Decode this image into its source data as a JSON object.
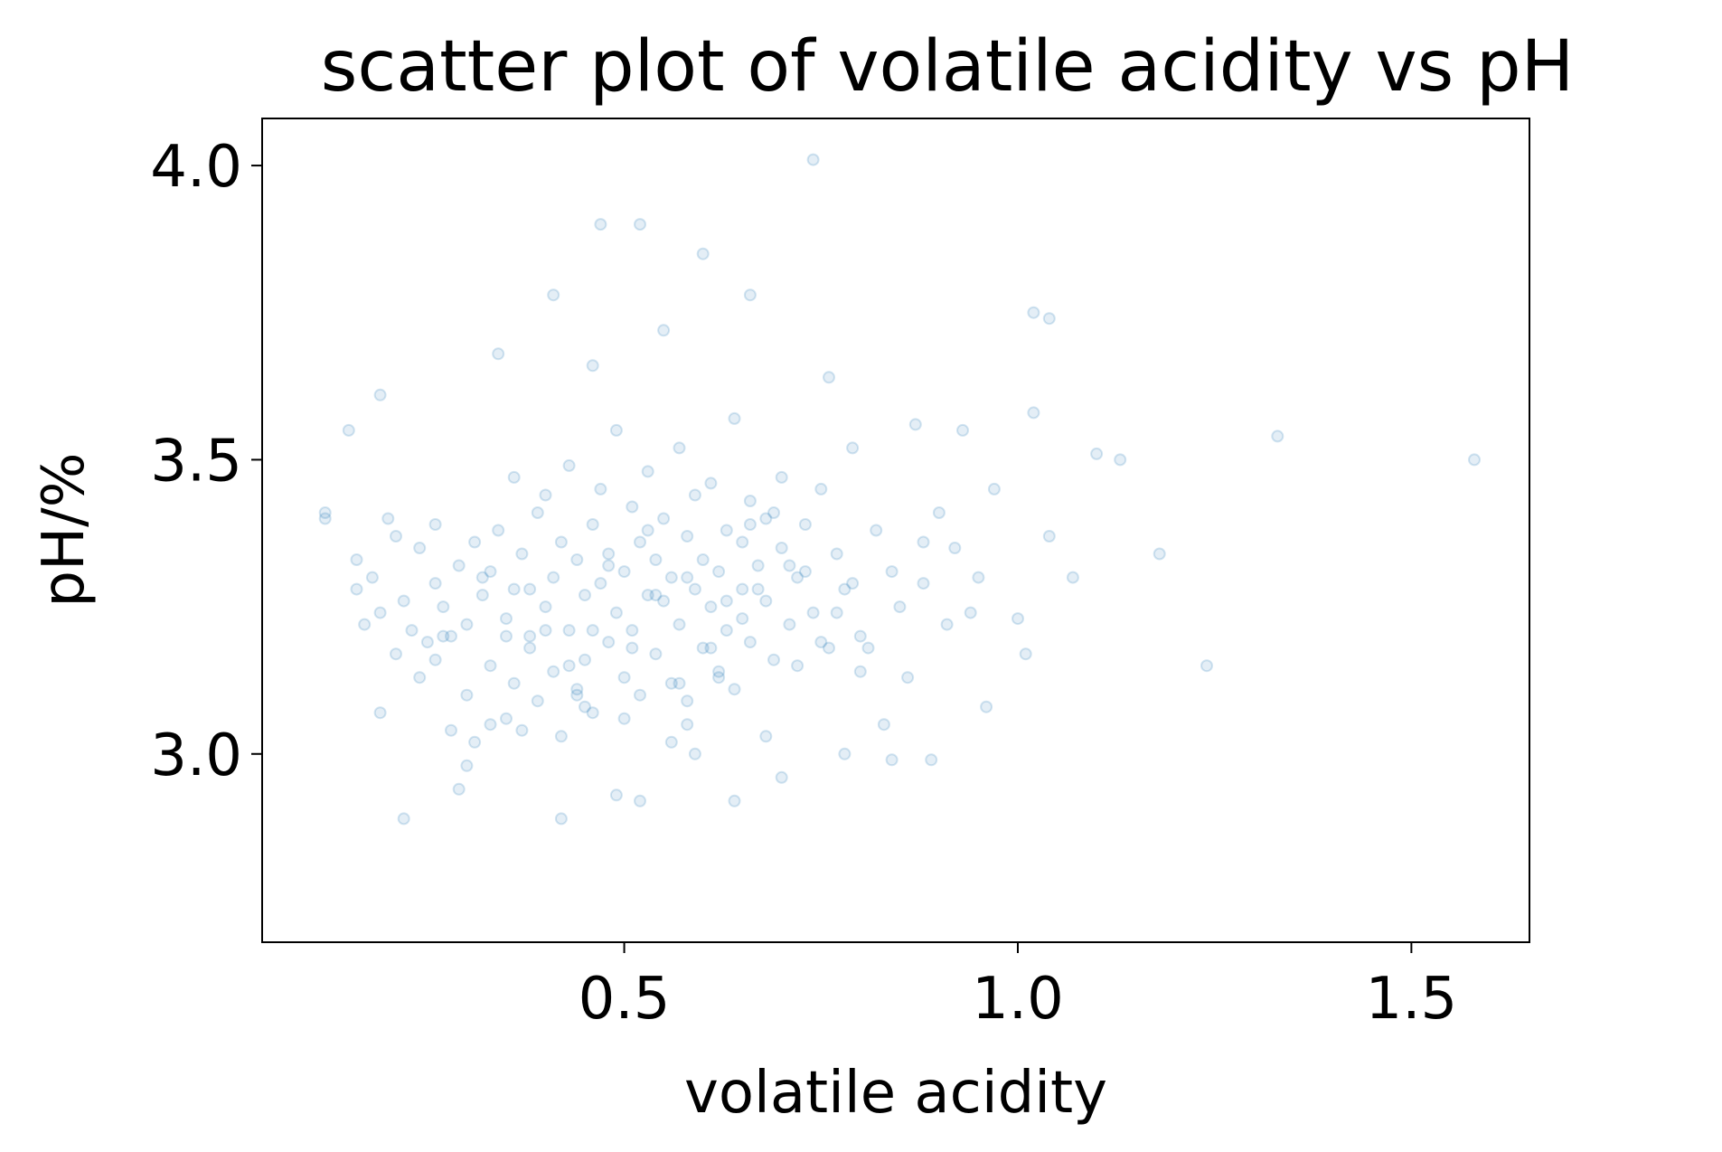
{
  "chart_data": {
    "type": "scatter",
    "title": "scatter plot of volatile acidity vs pH",
    "xlabel": "volatile acidity",
    "ylabel": "pH/%",
    "xlim": [
      0.04,
      1.65
    ],
    "ylim": [
      2.68,
      4.08
    ],
    "xticks": [
      0.5,
      1.0,
      1.5
    ],
    "xtick_labels": [
      "0.5",
      "1.0",
      "1.5"
    ],
    "yticks": [
      3.0,
      3.5,
      4.0
    ],
    "ytick_labels": [
      "3.0",
      "3.5",
      "4.0"
    ],
    "grid": false,
    "legend": "none",
    "marker_color": "#1f77b4",
    "marker_alpha": 0.12,
    "series": [
      {
        "x": [
          0.12,
          0.12,
          0.16,
          0.16,
          0.17,
          0.18,
          0.19,
          0.19,
          0.2,
          0.21,
          0.21,
          0.22,
          0.23,
          0.24,
          0.24,
          0.25,
          0.26,
          0.26,
          0.27,
          0.28,
          0.28,
          0.29,
          0.3,
          0.3,
          0.31,
          0.31,
          0.32,
          0.33,
          0.33,
          0.34,
          0.35,
          0.35,
          0.36,
          0.36,
          0.37,
          0.38,
          0.38,
          0.39,
          0.39,
          0.4,
          0.4,
          0.41,
          0.41,
          0.42,
          0.42,
          0.43,
          0.43,
          0.44,
          0.44,
          0.45,
          0.45,
          0.46,
          0.46,
          0.47,
          0.47,
          0.48,
          0.48,
          0.49,
          0.49,
          0.5,
          0.5,
          0.51,
          0.51,
          0.52,
          0.52,
          0.53,
          0.53,
          0.54,
          0.54,
          0.55,
          0.55,
          0.56,
          0.56,
          0.57,
          0.57,
          0.58,
          0.58,
          0.59,
          0.59,
          0.6,
          0.6,
          0.61,
          0.61,
          0.62,
          0.62,
          0.63,
          0.63,
          0.64,
          0.64,
          0.65,
          0.65,
          0.66,
          0.66,
          0.67,
          0.68,
          0.68,
          0.69,
          0.7,
          0.7,
          0.71,
          0.72,
          0.73,
          0.74,
          0.75,
          0.76,
          0.77,
          0.78,
          0.79,
          0.8,
          0.82,
          0.84,
          0.85,
          0.87,
          0.88,
          0.9,
          0.92,
          0.95,
          0.97,
          1.0,
          1.02,
          1.04,
          1.07,
          1.1,
          1.13,
          1.18,
          1.24,
          1.33,
          1.58,
          0.74,
          0.47,
          0.52,
          0.6,
          0.41,
          0.66,
          1.02,
          1.04,
          0.34,
          0.46,
          0.55,
          0.19,
          0.15,
          0.93,
          0.76,
          0.3,
          0.42,
          0.49,
          0.64,
          0.78,
          0.89,
          0.29,
          0.37,
          0.52,
          0.58,
          0.7,
          0.84,
          0.22,
          0.33,
          0.45,
          0.57,
          0.68,
          0.8,
          0.91,
          0.26,
          0.38,
          0.44,
          0.5,
          0.56,
          0.62,
          0.72,
          0.86,
          0.96,
          1.01,
          0.32,
          0.48,
          0.59,
          0.65,
          0.75,
          0.83,
          0.4,
          0.53,
          0.61,
          0.67,
          0.71,
          0.77,
          0.35,
          0.43,
          0.51,
          0.63,
          0.69,
          0.79,
          0.88,
          0.94,
          0.27,
          0.36,
          0.46,
          0.54,
          0.58,
          0.66,
          0.73,
          0.81
        ],
        "y": [
          3.41,
          3.4,
          3.28,
          3.33,
          3.22,
          3.3,
          3.07,
          3.24,
          3.4,
          3.37,
          3.17,
          3.26,
          3.21,
          3.35,
          3.13,
          3.19,
          3.39,
          3.29,
          3.25,
          3.2,
          3.04,
          3.32,
          3.22,
          3.1,
          3.36,
          3.02,
          3.27,
          3.15,
          3.31,
          3.38,
          3.06,
          3.23,
          3.47,
          3.12,
          3.34,
          3.28,
          3.18,
          3.41,
          3.09,
          3.25,
          3.44,
          3.14,
          3.3,
          3.36,
          3.03,
          3.21,
          3.49,
          3.11,
          3.33,
          3.27,
          3.16,
          3.39,
          3.07,
          3.29,
          3.45,
          3.19,
          3.34,
          3.24,
          3.55,
          3.13,
          3.31,
          3.42,
          3.21,
          3.36,
          3.1,
          3.27,
          3.48,
          3.17,
          3.33,
          3.26,
          3.4,
          3.12,
          3.3,
          3.52,
          3.22,
          3.37,
          3.05,
          3.28,
          3.44,
          3.18,
          3.33,
          3.25,
          3.46,
          3.14,
          3.31,
          3.38,
          3.21,
          3.57,
          3.11,
          3.36,
          3.28,
          3.43,
          3.19,
          3.32,
          3.26,
          3.4,
          3.16,
          3.35,
          3.47,
          3.22,
          3.3,
          3.39,
          3.24,
          3.45,
          3.18,
          3.34,
          3.28,
          3.52,
          3.2,
          3.38,
          3.31,
          3.25,
          3.56,
          3.29,
          3.41,
          3.35,
          3.3,
          3.45,
          3.23,
          3.58,
          3.37,
          3.3,
          3.51,
          3.5,
          3.34,
          3.15,
          3.54,
          3.5,
          4.01,
          3.9,
          3.9,
          3.85,
          3.78,
          3.78,
          3.75,
          3.74,
          3.68,
          3.66,
          3.72,
          3.61,
          3.55,
          3.55,
          3.64,
          2.98,
          2.89,
          2.93,
          2.92,
          3.0,
          2.99,
          2.94,
          3.04,
          2.92,
          3.09,
          2.96,
          2.99,
          2.89,
          3.05,
          3.08,
          3.12,
          3.03,
          3.14,
          3.22,
          3.16,
          3.2,
          3.1,
          3.06,
          3.02,
          3.13,
          3.15,
          3.13,
          3.08,
          3.17,
          3.3,
          3.32,
          3.0,
          3.23,
          3.19,
          3.05,
          3.21,
          3.38,
          3.18,
          3.28,
          3.32,
          3.24,
          3.2,
          3.15,
          3.18,
          3.26,
          3.41,
          3.29,
          3.36,
          3.24,
          3.2,
          3.28,
          3.21,
          3.27,
          3.3,
          3.39,
          3.31,
          3.18
        ]
      }
    ]
  }
}
